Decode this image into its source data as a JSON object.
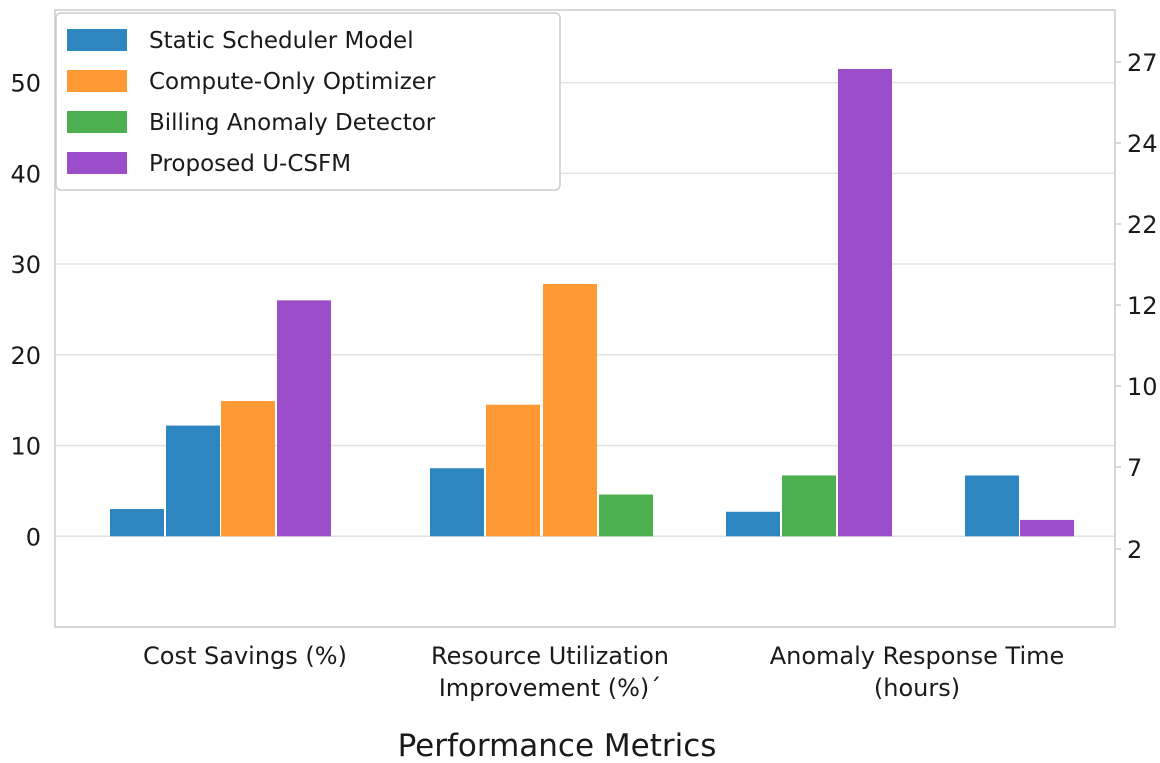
{
  "chart_data": {
    "type": "bar",
    "title": "",
    "xlabel": "Performance Metrics",
    "ylabel": "",
    "categories": [
      "Cost Savings (%)",
      "Resource Utilization\nImprovement (%)´",
      "Anomaly Response Time\n(hours)"
    ],
    "ylim": [
      -10,
      58
    ],
    "yticks": [
      "0",
      "10",
      "20",
      "30",
      "40",
      "50"
    ],
    "y2ticks": [
      "2",
      "7",
      "10",
      "12",
      "22",
      "24",
      "27"
    ],
    "grid": true,
    "legend_position": "top-left",
    "legend": [
      {
        "name": "Static Scheduler Model",
        "color": "#2e86c1"
      },
      {
        "name": "Compute-Only Optimizer",
        "color": "#ff9933"
      },
      {
        "name": "Billing Anomaly Detector",
        "color": "#4caf50"
      },
      {
        "name": "Proposed U-CSFM",
        "color": "#9b4dca"
      }
    ],
    "bars": [
      {
        "series": "Static Scheduler Model",
        "category": "Cost Savings (%)",
        "value": 3.0
      },
      {
        "series": "Static Scheduler Model",
        "category": "Cost Savings (%)",
        "value": 12.2
      },
      {
        "series": "Compute-Only Optimizer",
        "category": "Cost Savings (%)",
        "value": 14.9
      },
      {
        "series": "Proposed U-CSFM",
        "category": "Cost Savings (%)",
        "value": 26.0
      },
      {
        "series": "Static Scheduler Model",
        "category": "Resource Utilization Improvement (%)´",
        "value": 7.5
      },
      {
        "series": "Compute-Only Optimizer",
        "category": "Resource Utilization Improvement (%)´",
        "value": 14.5
      },
      {
        "series": "Compute-Only Optimizer",
        "category": "Resource Utilization Improvement (%)´",
        "value": 27.8
      },
      {
        "series": "Billing Anomaly Detector",
        "category": "Resource Utilization Improvement (%)´",
        "value": 4.6
      },
      {
        "series": "Static Scheduler Model",
        "category": "Anomaly Response Time (hours)",
        "value": 2.7
      },
      {
        "series": "Billing Anomaly Detector",
        "category": "Anomaly Response Time (hours)",
        "value": 6.7
      },
      {
        "series": "Proposed U-CSFM",
        "category": "Anomaly Response Time (hours)",
        "value": 51.5
      },
      {
        "series": "Static Scheduler Model",
        "category": "Anomaly Response Time (hours)",
        "value": 6.7
      },
      {
        "series": "Proposed U-CSFM",
        "category": "Anomaly Response Time (hours)",
        "value": 1.8
      }
    ]
  }
}
